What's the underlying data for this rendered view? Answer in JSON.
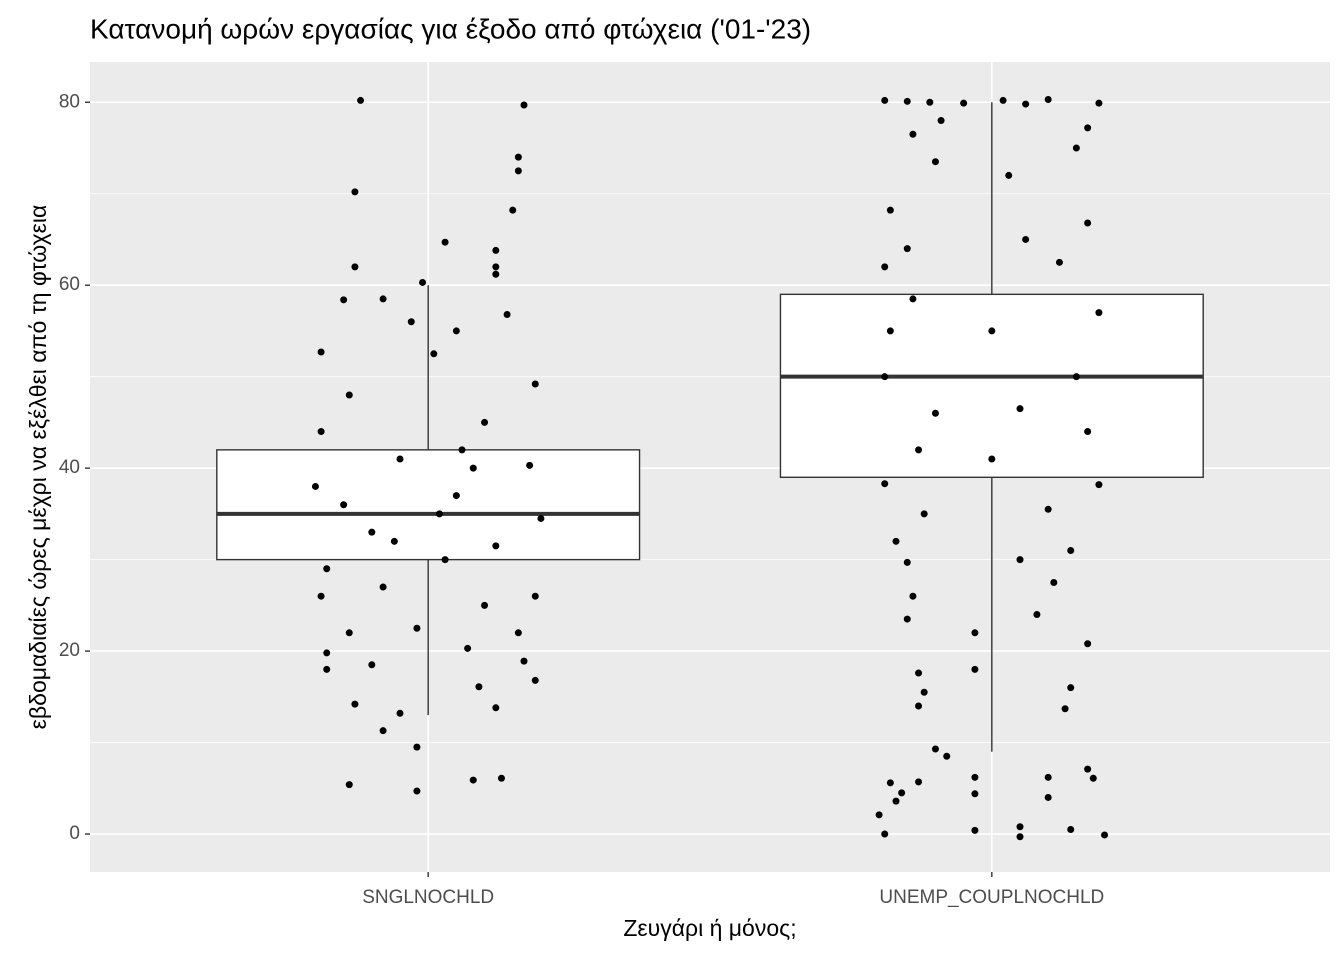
{
  "chart_data": {
    "type": "boxplot_jitter",
    "title": "Κατανομή ωρών εργασίας για έξοδο από φτώχεια ('01-'23)",
    "x_label": "Ζευγάρι ή μόνος;",
    "y_label": "εβδομαδιαίες ώρες μέχρι να εξέλθει από τη φτώχεια",
    "categories": [
      "SNGLNOCHLD",
      "UNEMP_COUPLNOCHLD"
    ],
    "ylim": [
      -4.15,
      84.4
    ],
    "yticks": [
      0,
      20,
      40,
      60,
      80
    ],
    "yticks_minor": [
      10,
      30,
      50,
      70
    ],
    "grid": true,
    "panel_color": "#ebebeb",
    "box_color": "#ffffff",
    "point_color": "#000000",
    "boxes": [
      {
        "whisker_low": 13,
        "q1": 30,
        "median": 35,
        "q3": 42,
        "whisker_high": 60
      },
      {
        "whisker_low": 9,
        "q1": 39,
        "median": 50,
        "q3": 59,
        "whisker_high": 80
      }
    ],
    "points": [
      [
        [
          -0.12,
          80.2
        ],
        [
          0.17,
          79.7
        ],
        [
          0.16,
          74
        ],
        [
          0.16,
          72.5
        ],
        [
          0.15,
          68.2
        ],
        [
          -0.13,
          70.2
        ],
        [
          -0.13,
          62
        ],
        [
          0.12,
          61.2
        ],
        [
          0.12,
          62
        ],
        [
          -0.01,
          60.3
        ],
        [
          0.03,
          64.7
        ],
        [
          0.12,
          63.8
        ],
        [
          -0.15,
          58.4
        ],
        [
          -0.08,
          58.5
        ],
        [
          0.14,
          56.8
        ],
        [
          -0.03,
          56
        ],
        [
          0.05,
          55
        ],
        [
          -0.19,
          52.7
        ],
        [
          0.01,
          52.5
        ],
        [
          -0.14,
          48
        ],
        [
          0.19,
          49.2
        ],
        [
          -0.19,
          44
        ],
        [
          0.1,
          45
        ],
        [
          -0.05,
          41
        ],
        [
          0.08,
          40
        ],
        [
          -0.2,
          38
        ],
        [
          0.18,
          40.3
        ],
        [
          -0.15,
          36
        ],
        [
          0.05,
          37
        ],
        [
          0.2,
          34.5
        ],
        [
          -0.1,
          33
        ],
        [
          0.12,
          31.5
        ],
        [
          -0.18,
          29
        ],
        [
          0.03,
          30
        ],
        [
          -0.19,
          26
        ],
        [
          0.19,
          26
        ],
        [
          -0.08,
          27
        ],
        [
          0.1,
          25
        ],
        [
          -0.14,
          22
        ],
        [
          0.16,
          22
        ],
        [
          -0.02,
          22.5
        ],
        [
          0.07,
          20.3
        ],
        [
          -0.18,
          19.8
        ],
        [
          0.17,
          18.9
        ],
        [
          -0.18,
          18
        ],
        [
          -0.1,
          18.5
        ],
        [
          0.19,
          16.8
        ],
        [
          0.09,
          16.1
        ],
        [
          -0.13,
          14.2
        ],
        [
          0.12,
          13.8
        ],
        [
          -0.05,
          13.2
        ],
        [
          -0.08,
          11.3
        ],
        [
          -0.02,
          9.5
        ],
        [
          -0.14,
          5.4
        ],
        [
          -0.02,
          4.7
        ],
        [
          0.08,
          5.9
        ],
        [
          0.13,
          6.1
        ],
        [
          0.02,
          35
        ],
        [
          -0.06,
          32
        ],
        [
          0.06,
          42
        ]
      ],
      [
        [
          -0.19,
          80.2
        ],
        [
          -0.15,
          80.1
        ],
        [
          -0.11,
          80
        ],
        [
          -0.05,
          79.9
        ],
        [
          0.02,
          80.2
        ],
        [
          0.06,
          79.8
        ],
        [
          0.1,
          80.3
        ],
        [
          0.19,
          79.9
        ],
        [
          -0.14,
          76.5
        ],
        [
          -0.09,
          78
        ],
        [
          0.17,
          77.2
        ],
        [
          -0.1,
          73.5
        ],
        [
          0.15,
          75
        ],
        [
          -0.18,
          68.2
        ],
        [
          0.03,
          72
        ],
        [
          0.17,
          66.8
        ],
        [
          -0.15,
          64
        ],
        [
          0.06,
          65
        ],
        [
          -0.19,
          62
        ],
        [
          0.12,
          62.5
        ],
        [
          -0.14,
          58.5
        ],
        [
          0.19,
          57
        ],
        [
          -0.18,
          55
        ],
        [
          0,
          55
        ],
        [
          -0.19,
          50
        ],
        [
          0.15,
          50
        ],
        [
          -0.1,
          46
        ],
        [
          0.05,
          46.5
        ],
        [
          0.17,
          44
        ],
        [
          -0.13,
          42
        ],
        [
          0,
          41
        ],
        [
          -0.19,
          38.3
        ],
        [
          0.19,
          38.2
        ],
        [
          -0.12,
          35
        ],
        [
          0.1,
          35.5
        ],
        [
          -0.17,
          32
        ],
        [
          0.14,
          31
        ],
        [
          -0.15,
          29.7
        ],
        [
          0.05,
          30
        ],
        [
          -0.14,
          26
        ],
        [
          0.11,
          27.5
        ],
        [
          -0.15,
          23.5
        ],
        [
          0.08,
          24
        ],
        [
          -0.03,
          22
        ],
        [
          0.17,
          20.8
        ],
        [
          -0.13,
          17.6
        ],
        [
          0.14,
          16
        ],
        [
          -0.13,
          14
        ],
        [
          0.13,
          13.7
        ],
        [
          -0.12,
          15.5
        ],
        [
          -0.1,
          9.3
        ],
        [
          -0.08,
          8.5
        ],
        [
          -0.03,
          18
        ],
        [
          -0.18,
          5.6
        ],
        [
          -0.16,
          4.5
        ],
        [
          -0.13,
          5.7
        ],
        [
          -0.03,
          6.2
        ],
        [
          -0.03,
          4.4
        ],
        [
          0.1,
          6.2
        ],
        [
          0.17,
          7.1
        ],
        [
          0.18,
          6.1
        ],
        [
          -0.2,
          2.1
        ],
        [
          -0.17,
          3.6
        ],
        [
          -0.19,
          0
        ],
        [
          -0.03,
          0.4
        ],
        [
          0.05,
          0.8
        ],
        [
          0.05,
          -0.3
        ],
        [
          0.14,
          0.5
        ],
        [
          0.2,
          -0.1
        ],
        [
          0.1,
          4
        ]
      ]
    ]
  }
}
